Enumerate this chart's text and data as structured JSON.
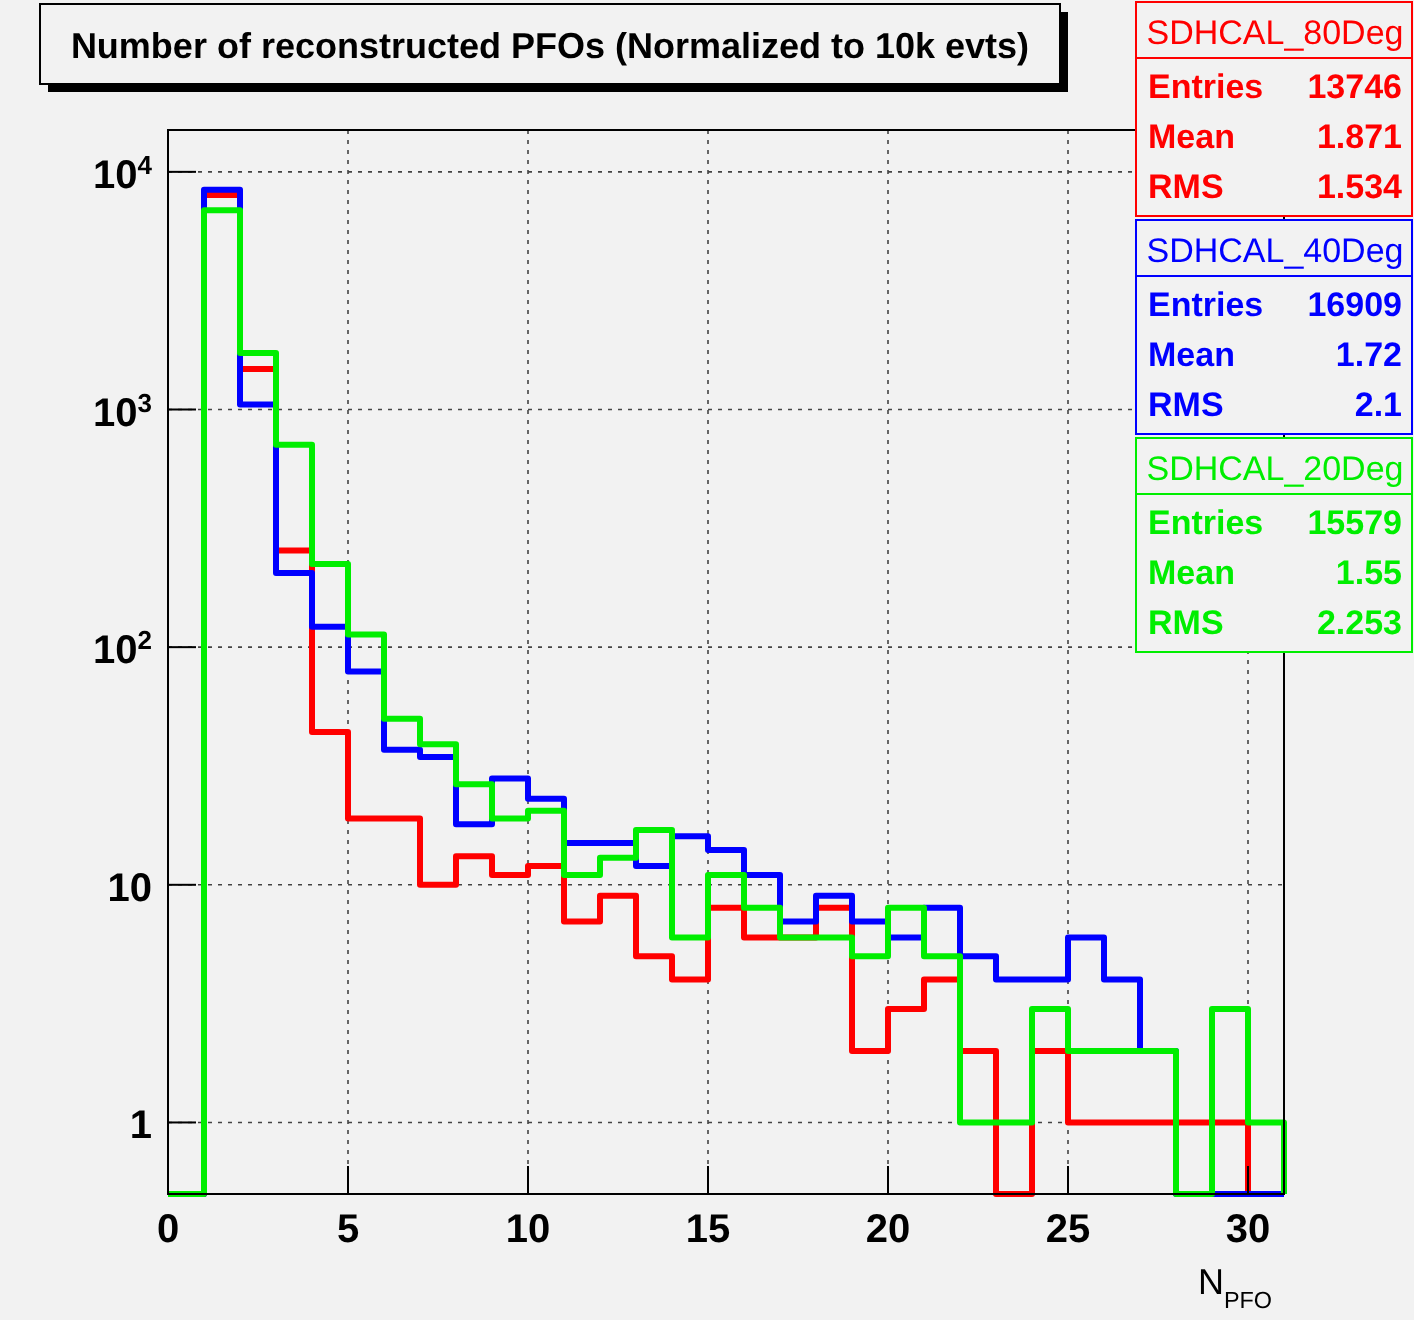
{
  "chart_data": {
    "type": "histogram",
    "title": "Number of reconstructed PFOs (Normalized to 10k evts)",
    "xlabel": "N$_{PFO}$",
    "bins": [
      0,
      1,
      2,
      3,
      4,
      5,
      6,
      7,
      8,
      9,
      10,
      11,
      12,
      13,
      14,
      15,
      16,
      17,
      18,
      19,
      20,
      21,
      22,
      23,
      24,
      25,
      26,
      27,
      28,
      29,
      30,
      31
    ],
    "series": [
      {
        "name": "SDHCAL_80Deg",
        "color": "#ff0000",
        "values": [
          null,
          8000,
          1480,
          255,
          44,
          19,
          19,
          10,
          13.2,
          11,
          12,
          7,
          9,
          5,
          4,
          8,
          6,
          6,
          8,
          2,
          3,
          4,
          2,
          null,
          2,
          1,
          1,
          1,
          1,
          1,
          null
        ]
      },
      {
        "name": "SDHCAL_40Deg",
        "color": "#0000ff",
        "values": [
          null,
          8400,
          1050,
          205,
          122,
          79,
          37,
          34.5,
          18,
          28,
          23,
          15,
          15,
          12,
          16,
          14,
          11,
          7,
          9,
          7,
          6,
          8,
          5,
          4,
          4,
          6,
          4,
          2,
          null,
          null,
          null
        ]
      },
      {
        "name": "SDHCAL_20Deg",
        "color": "#00ee00",
        "values": [
          null,
          6900,
          1730,
          710,
          224,
          113,
          50,
          39,
          26.5,
          19,
          20.5,
          11,
          13,
          17,
          6,
          11,
          8,
          6,
          6,
          5,
          8,
          5,
          1,
          1,
          3,
          2,
          2,
          2,
          null,
          3,
          1
        ]
      }
    ],
    "annotations": [
      "Entries 13746",
      "Mean 1.871",
      "RMS 1.534",
      "Entries 16909",
      "Mean 1.72",
      "RMS 2.1",
      "Entries 15579",
      "Mean 1.55",
      "RMS 2.253"
    ],
    "xlim": [
      0,
      31
    ],
    "xticks": [
      0,
      5,
      10,
      15,
      20,
      25,
      30
    ],
    "ylim": [
      0.5,
      15000
    ],
    "yticks": [
      {
        "value": 1,
        "label": "1"
      },
      {
        "value": 10,
        "label": "10"
      },
      {
        "value": 100,
        "label": "10$^{2}$"
      },
      {
        "value": 1000,
        "label": "10$^{3}$"
      },
      {
        "value": 10000,
        "label": "10$^{4}$"
      }
    ],
    "log": "y",
    "grid": true,
    "legend": "top right"
  }
}
